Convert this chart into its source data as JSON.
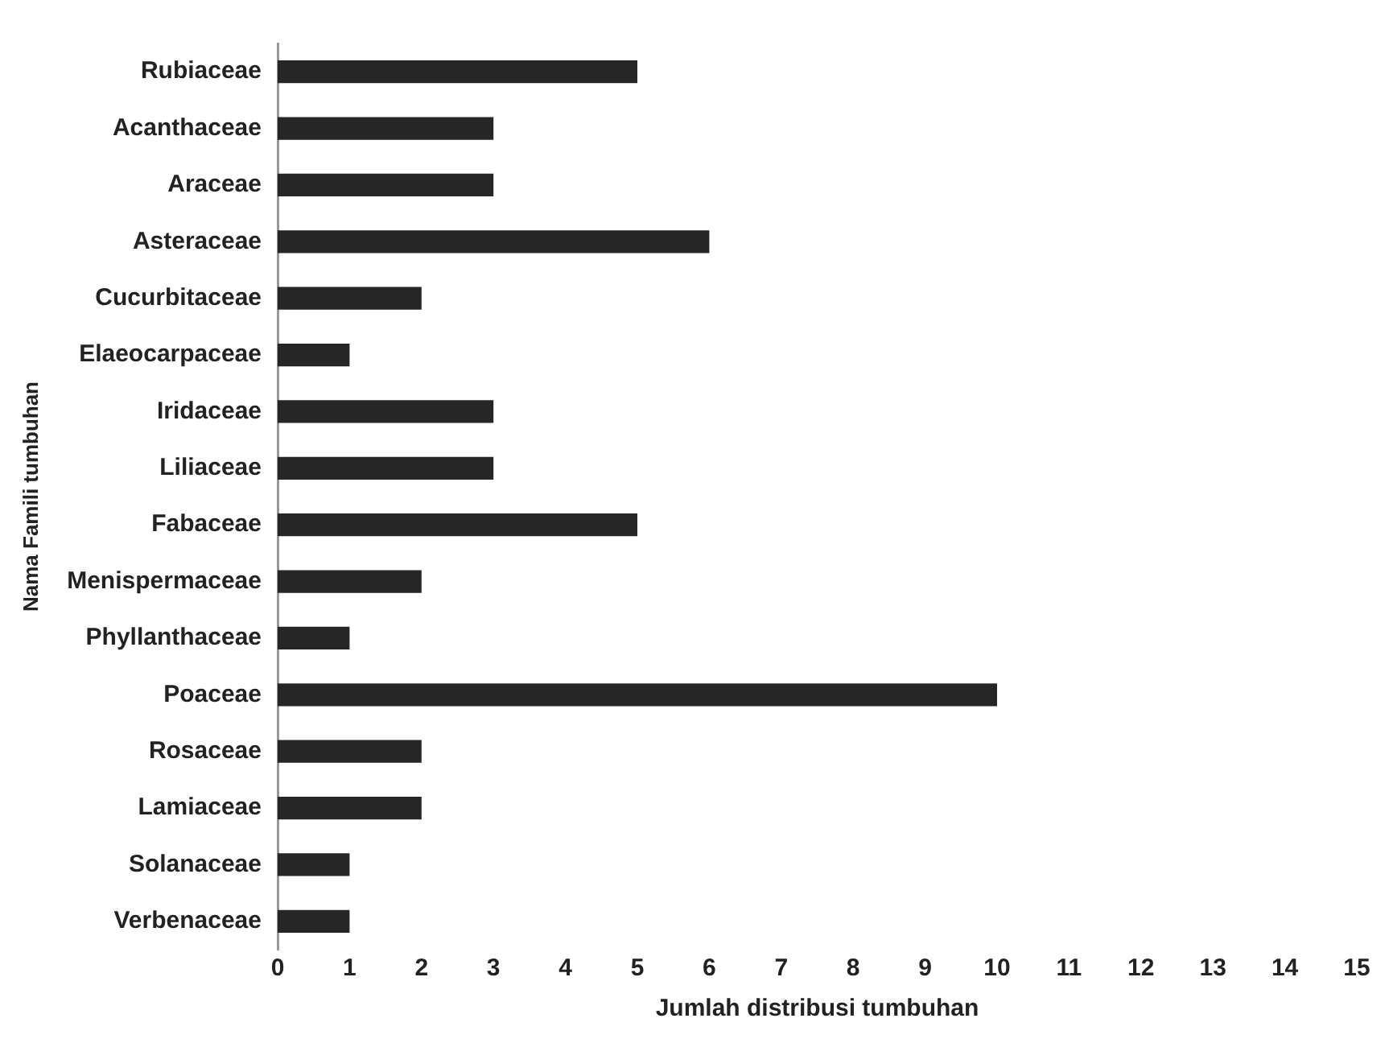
{
  "chart_data": {
    "type": "bar",
    "orientation": "horizontal",
    "xlabel": "Jumlah distribusi tumbuhan",
    "ylabel": "Nama Famili tumbuhan",
    "categories": [
      "Rubiaceae",
      "Acanthaceae",
      "Araceae",
      "Asteraceae",
      "Cucurbitaceae",
      "Elaeocarpaceae",
      "Iridaceae",
      "Liliaceae",
      "Fabaceae",
      "Menispermaceae",
      "Phyllanthaceae",
      "Poaceae",
      "Rosaceae",
      "Lamiaceae",
      "Solanaceae",
      "Verbenaceae"
    ],
    "values": [
      5,
      3,
      3,
      6,
      2,
      1,
      3,
      3,
      5,
      2,
      1,
      10,
      2,
      2,
      1,
      1
    ],
    "color": "#262626",
    "xlim": [
      0,
      15
    ],
    "xticks": [
      0,
      1,
      2,
      3,
      4,
      5,
      6,
      7,
      8,
      9,
      10,
      11,
      12,
      13,
      14,
      15
    ],
    "grid": false,
    "legend": false
  }
}
